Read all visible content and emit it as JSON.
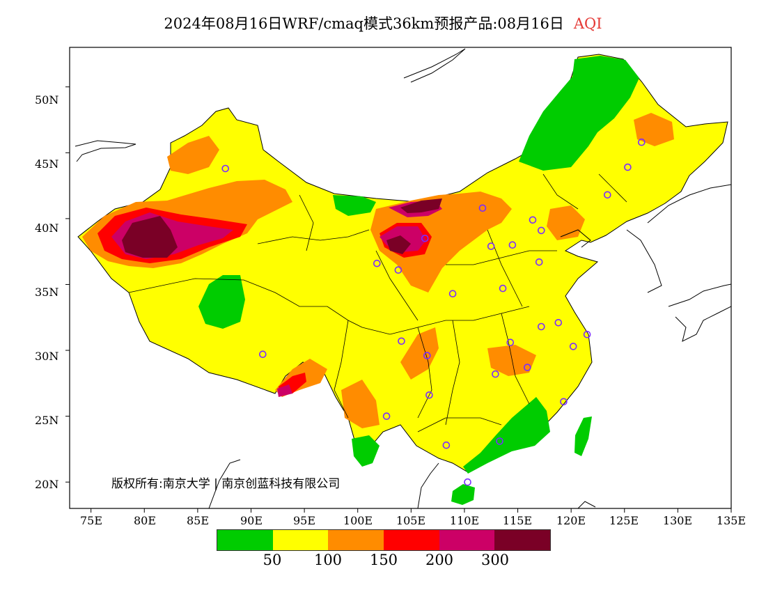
{
  "title": {
    "main": "2024年08月16日WRF/cmaq模式36km预报产品:08月16日",
    "variable": "AQI"
  },
  "axes": {
    "lat_labels": [
      "50N",
      "45N",
      "40N",
      "35N",
      "30N",
      "25N",
      "20N"
    ],
    "lon_labels": [
      "75E",
      "80E",
      "85E",
      "90E",
      "95E",
      "100E",
      "105E",
      "110E",
      "115E",
      "120E",
      "125E",
      "130E",
      "135E"
    ],
    "lat_range": [
      18,
      53
    ],
    "lon_range": [
      73,
      135
    ]
  },
  "legend": {
    "colors": [
      "#00cc00",
      "#ffff00",
      "#ff8c00",
      "#ff0000",
      "#cc0066",
      "#7a0026"
    ],
    "ticks": [
      "50",
      "100",
      "150",
      "200",
      "300"
    ]
  },
  "copyright": "版权所有:南京大学 | 南京创蓝科技有限公司",
  "stations": [
    {
      "lon": 87.6,
      "lat": 43.8
    },
    {
      "lon": 111.7,
      "lat": 40.8
    },
    {
      "lon": 106.3,
      "lat": 38.5
    },
    {
      "lon": 101.8,
      "lat": 36.6
    },
    {
      "lon": 103.8,
      "lat": 36.1
    },
    {
      "lon": 108.9,
      "lat": 34.3
    },
    {
      "lon": 112.5,
      "lat": 37.9
    },
    {
      "lon": 114.5,
      "lat": 38.0
    },
    {
      "lon": 116.4,
      "lat": 39.9
    },
    {
      "lon": 117.2,
      "lat": 39.1
    },
    {
      "lon": 117.0,
      "lat": 36.7
    },
    {
      "lon": 113.6,
      "lat": 34.7
    },
    {
      "lon": 123.4,
      "lat": 41.8
    },
    {
      "lon": 125.3,
      "lat": 43.9
    },
    {
      "lon": 126.6,
      "lat": 45.8
    },
    {
      "lon": 117.2,
      "lat": 31.8
    },
    {
      "lon": 118.8,
      "lat": 32.1
    },
    {
      "lon": 121.5,
      "lat": 31.2
    },
    {
      "lon": 120.2,
      "lat": 30.3
    },
    {
      "lon": 114.3,
      "lat": 30.6
    },
    {
      "lon": 115.9,
      "lat": 28.7
    },
    {
      "lon": 112.9,
      "lat": 28.2
    },
    {
      "lon": 104.1,
      "lat": 30.7
    },
    {
      "lon": 106.5,
      "lat": 29.6
    },
    {
      "lon": 106.7,
      "lat": 26.6
    },
    {
      "lon": 102.7,
      "lat": 25.0
    },
    {
      "lon": 108.3,
      "lat": 22.8
    },
    {
      "lon": 113.3,
      "lat": 23.1
    },
    {
      "lon": 119.3,
      "lat": 26.1
    },
    {
      "lon": 110.3,
      "lat": 20.0
    },
    {
      "lon": 91.1,
      "lat": 29.7
    }
  ]
}
